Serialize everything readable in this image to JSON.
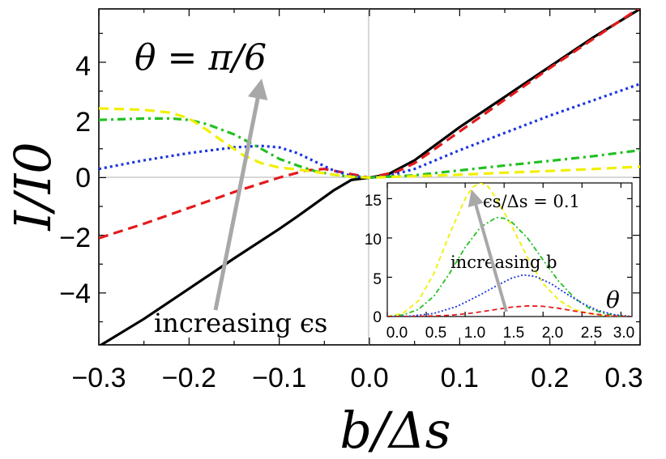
{
  "chart_data": [
    {
      "type": "line",
      "title": "",
      "xlabel": "b/Δs",
      "ylabel": "I/I0",
      "xlim": [
        -0.3,
        0.3
      ],
      "ylim": [
        -5.8,
        5.85
      ],
      "xticks": [
        "−0.3",
        "−0.2",
        "−0.1",
        "0.0",
        "0.1",
        "0.2",
        "0.3"
      ],
      "yticks": [
        "−4",
        "−2",
        "0",
        "2",
        "4"
      ],
      "grid": false,
      "legend": "none",
      "annotations": {
        "theta_label": "θ = π/6",
        "arrow_label": "increasing ϵs"
      },
      "series": [
        {
          "color": "#000000",
          "style": "solid",
          "x": [
            -0.3,
            -0.25,
            -0.2,
            -0.15,
            -0.1,
            -0.08,
            -0.06,
            -0.04,
            -0.02,
            0.0,
            0.02,
            0.05,
            0.1,
            0.15,
            0.2,
            0.25,
            0.3
          ],
          "y": [
            -5.85,
            -4.9,
            -3.85,
            -2.8,
            -1.78,
            -1.35,
            -0.9,
            -0.45,
            -0.08,
            0.0,
            0.1,
            0.6,
            1.75,
            2.8,
            3.85,
            4.9,
            5.85
          ]
        },
        {
          "color": "#e31a1c",
          "style": "dashed",
          "x": [
            -0.3,
            -0.25,
            -0.2,
            -0.15,
            -0.1,
            -0.07,
            -0.05,
            -0.03,
            0.0,
            0.03,
            0.05,
            0.1,
            0.15,
            0.2,
            0.25,
            0.3
          ],
          "y": [
            -2.1,
            -1.6,
            -1.05,
            -0.5,
            0.0,
            0.25,
            0.3,
            0.18,
            0.0,
            0.2,
            0.5,
            1.6,
            2.7,
            3.8,
            4.85,
            5.9
          ]
        },
        {
          "color": "#1a35e0",
          "style": "dotted",
          "x": [
            -0.3,
            -0.25,
            -0.2,
            -0.15,
            -0.12,
            -0.1,
            -0.08,
            -0.06,
            -0.04,
            -0.02,
            0.0,
            0.02,
            0.05,
            0.1,
            0.15,
            0.2,
            0.25,
            0.3
          ],
          "y": [
            0.3,
            0.6,
            0.85,
            1.05,
            1.1,
            1.05,
            0.85,
            0.55,
            0.25,
            0.06,
            0.0,
            0.05,
            0.3,
            0.95,
            1.55,
            2.15,
            2.7,
            3.25
          ]
        },
        {
          "color": "#22c022",
          "style": "dashdot",
          "x": [
            -0.3,
            -0.25,
            -0.22,
            -0.2,
            -0.18,
            -0.15,
            -0.12,
            -0.1,
            -0.08,
            -0.06,
            -0.04,
            -0.02,
            0.0,
            0.05,
            0.1,
            0.15,
            0.2,
            0.25,
            0.3
          ],
          "y": [
            2.0,
            2.05,
            2.05,
            2.0,
            1.85,
            1.5,
            1.0,
            0.65,
            0.42,
            0.22,
            0.1,
            0.03,
            0.0,
            0.08,
            0.25,
            0.42,
            0.58,
            0.75,
            0.95
          ]
        },
        {
          "color": "#f0f000",
          "style": "dashed",
          "x": [
            -0.3,
            -0.25,
            -0.22,
            -0.2,
            -0.18,
            -0.16,
            -0.14,
            -0.12,
            -0.1,
            -0.08,
            -0.06,
            -0.04,
            -0.02,
            0.0,
            0.05,
            0.1,
            0.15,
            0.2,
            0.25,
            0.3
          ],
          "y": [
            2.4,
            2.35,
            2.25,
            2.05,
            1.65,
            1.2,
            0.78,
            0.5,
            0.35,
            0.28,
            0.2,
            0.1,
            0.03,
            0.0,
            0.05,
            0.1,
            0.17,
            0.23,
            0.3,
            0.38
          ]
        }
      ]
    },
    {
      "type": "line",
      "title": "",
      "xlabel": "θ",
      "ylabel": "",
      "xlim": [
        0,
        3.14159
      ],
      "ylim": [
        0,
        17
      ],
      "xticks": [
        "0.0",
        "0.5",
        "1.0",
        "1.5",
        "2.0",
        "2.5",
        "3.0"
      ],
      "yticks": [
        "0",
        "5",
        "10",
        "15"
      ],
      "grid": false,
      "legend": "none",
      "annotations": {
        "param_label": "ϵs/Δs = 0.1",
        "arrow_label": "increasing b"
      },
      "series": [
        {
          "color": "#f0f000",
          "style": "dashed",
          "x": [
            0.0,
            0.2,
            0.4,
            0.6,
            0.8,
            1.0,
            1.1,
            1.2,
            1.3,
            1.4,
            1.6,
            1.8,
            2.0,
            2.2,
            2.4,
            2.6,
            2.8,
            3.0,
            3.14
          ],
          "y": [
            0.0,
            0.4,
            2.0,
            5.5,
            10.5,
            15.0,
            16.5,
            17.0,
            16.5,
            15.0,
            11.5,
            7.5,
            4.2,
            2.1,
            0.9,
            0.35,
            0.1,
            0.02,
            0.0
          ]
        },
        {
          "color": "#22c022",
          "style": "dashdot",
          "x": [
            0.0,
            0.2,
            0.4,
            0.6,
            0.8,
            1.0,
            1.2,
            1.4,
            1.5,
            1.6,
            1.8,
            2.0,
            2.2,
            2.4,
            2.6,
            2.8,
            3.0,
            3.14
          ],
          "y": [
            0.0,
            0.2,
            0.9,
            2.6,
            5.5,
            8.8,
            11.4,
            12.6,
            12.5,
            12.0,
            10.0,
            7.2,
            4.5,
            2.4,
            1.0,
            0.35,
            0.07,
            0.0
          ]
        },
        {
          "color": "#1a35e0",
          "style": "dotted",
          "x": [
            0.0,
            0.3,
            0.6,
            0.9,
            1.2,
            1.4,
            1.6,
            1.75,
            1.9,
            2.1,
            2.3,
            2.5,
            2.7,
            2.9,
            3.14
          ],
          "y": [
            0.0,
            0.05,
            0.4,
            1.3,
            2.8,
            3.9,
            4.9,
            5.3,
            5.1,
            4.2,
            2.9,
            1.7,
            0.8,
            0.25,
            0.0
          ]
        },
        {
          "color": "#e31a1c",
          "style": "dashed",
          "x": [
            0.0,
            0.4,
            0.8,
            1.1,
            1.4,
            1.6,
            1.8,
            2.0,
            2.2,
            2.4,
            2.6,
            2.8,
            3.0,
            3.14
          ],
          "y": [
            0.0,
            0.02,
            0.15,
            0.45,
            0.9,
            1.2,
            1.35,
            1.3,
            1.05,
            0.7,
            0.4,
            0.15,
            0.03,
            0.0
          ]
        }
      ]
    }
  ]
}
